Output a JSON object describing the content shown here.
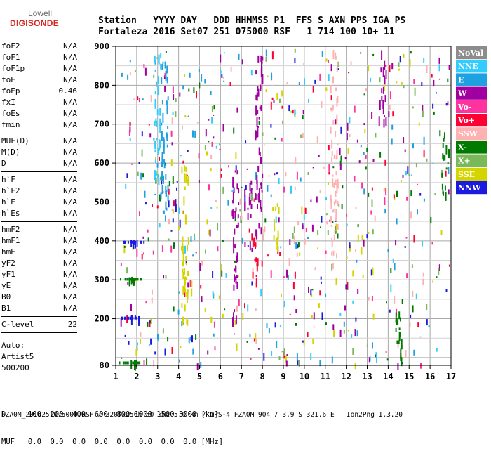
{
  "logo": {
    "line1": "Lowell",
    "line2": "DIGISONDE"
  },
  "header": {
    "labels_line": "Station   YYYY DAY   DDD HHMMSS P1  FFS S AXN PPS IGA PS",
    "values_line": "Fortaleza 2016 Set07 251 075000 RSF   1 714 100 10+ 11"
  },
  "params": [
    [
      {
        "name": "foF2",
        "value": "N/A"
      },
      {
        "name": "foF1",
        "value": "N/A"
      },
      {
        "name": "foF1p",
        "value": "N/A"
      },
      {
        "name": "foE",
        "value": "N/A"
      },
      {
        "name": "foEp",
        "value": "0.46"
      },
      {
        "name": "fxI",
        "value": "N/A"
      },
      {
        "name": "foEs",
        "value": "N/A"
      },
      {
        "name": "fmin",
        "value": "N/A"
      }
    ],
    [
      {
        "name": "MUF(D)",
        "value": "N/A"
      },
      {
        "name": "M(D)",
        "value": "N/A"
      },
      {
        "name": "D",
        "value": "N/A"
      }
    ],
    [
      {
        "name": "h`F",
        "value": "N/A"
      },
      {
        "name": "h`F2",
        "value": "N/A"
      },
      {
        "name": "h`E",
        "value": "N/A"
      },
      {
        "name": "h`Es",
        "value": "N/A"
      }
    ],
    [
      {
        "name": "hmF2",
        "value": "N/A"
      },
      {
        "name": "hmF1",
        "value": "N/A"
      },
      {
        "name": "hmE",
        "value": "N/A"
      },
      {
        "name": "yF2",
        "value": "N/A"
      },
      {
        "name": "yF1",
        "value": "N/A"
      },
      {
        "name": "yE",
        "value": "N/A"
      },
      {
        "name": "B0",
        "value": "N/A"
      },
      {
        "name": "B1",
        "value": "N/A"
      }
    ],
    [
      {
        "name": "C-level",
        "value": "22"
      }
    ]
  ],
  "auto": {
    "line1": "Auto:",
    "line2": "Artist5",
    "line3": "500200"
  },
  "footer": {
    "d_row": "D     100  200  400  600  800 1000 1500 3000 [km]",
    "muf_row": "MUF   0.0  0.0  0.0  0.0  0.0  0.0  0.0  0.0 [MHz]",
    "file_line": "FZA0M_2016251075000.RSF / 320fx256h 50 kHz 5.0 km / DPS-4 FZA0M 904 / 3.9 S 321.6 E   Ion2Png 1.3.20"
  },
  "legend": [
    {
      "label": "NoVal",
      "color": "#8c8c8c"
    },
    {
      "label": "NNE",
      "color": "#33ccff"
    },
    {
      "label": "E",
      "color": "#1fa0e0"
    },
    {
      "label": "W",
      "color": "#a000a0"
    },
    {
      "label": "Vo-",
      "color": "#ff33a0"
    },
    {
      "label": "Vo+",
      "color": "#ff0033"
    },
    {
      "label": "SSW",
      "color": "#ffb0b0"
    },
    {
      "label": "X-",
      "color": "#007a00"
    },
    {
      "label": "X+",
      "color": "#7ab85a"
    },
    {
      "label": "SSE",
      "color": "#d4d400"
    },
    {
      "label": "NNW",
      "color": "#1a1ae0"
    }
  ],
  "chart_data": {
    "type": "scatter",
    "title": "",
    "xlabel": "",
    "ylabel": "",
    "xlim": [
      1,
      17
    ],
    "ylim": [
      80,
      900
    ],
    "x_ticks": [
      1,
      2,
      3,
      4,
      5,
      6,
      7,
      8,
      9,
      10,
      11,
      12,
      13,
      14,
      15,
      16,
      17
    ],
    "y_ticks": [
      80,
      200,
      300,
      400,
      500,
      600,
      700,
      800,
      900
    ],
    "grid": true,
    "trace_groups": [
      {
        "freq": 1.8,
        "h_from": 90,
        "h_to": 95,
        "color": "#007a00"
      },
      {
        "freq": 1.9,
        "h_from": 205,
        "h_to": 210,
        "color": "#1a1ae0"
      },
      {
        "freq": 1.8,
        "h_from": 305,
        "h_to": 308,
        "color": "#007a00"
      },
      {
        "freq": 1.85,
        "h_from": 400,
        "h_to": 402,
        "color": "#1a1ae0"
      },
      {
        "freq": 3.0,
        "h_from": 560,
        "h_to": 900,
        "color": "#33ccff"
      },
      {
        "freq": 3.3,
        "h_from": 460,
        "h_to": 880,
        "color": "#1fa0e0"
      },
      {
        "freq": 4.3,
        "h_from": 180,
        "h_to": 600,
        "color": "#d4d400"
      },
      {
        "freq": 6.7,
        "h_from": 200,
        "h_to": 600,
        "color": "#a000a0"
      },
      {
        "freq": 7.3,
        "h_from": 380,
        "h_to": 560,
        "color": "#a000a0"
      },
      {
        "freq": 7.6,
        "h_from": 280,
        "h_to": 420,
        "color": "#ff0033"
      },
      {
        "freq": 7.8,
        "h_from": 420,
        "h_to": 880,
        "color": "#a000a0"
      },
      {
        "freq": 8.6,
        "h_from": 380,
        "h_to": 500,
        "color": "#d4d400"
      },
      {
        "freq": 11.4,
        "h_from": 330,
        "h_to": 900,
        "color": "#ffb0b0"
      },
      {
        "freq": 13.7,
        "h_from": 700,
        "h_to": 900,
        "color": "#a000a0"
      },
      {
        "freq": 14.5,
        "h_from": 80,
        "h_to": 260,
        "color": "#007a00"
      },
      {
        "freq": 16.7,
        "h_from": 520,
        "h_to": 700,
        "color": "#007a00"
      }
    ]
  }
}
